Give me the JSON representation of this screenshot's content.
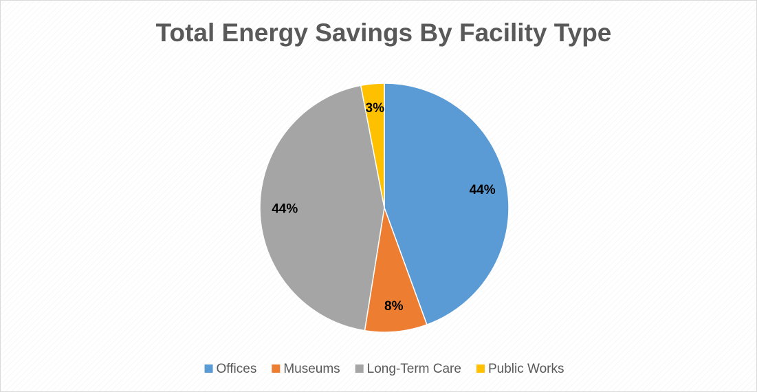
{
  "chart_data": {
    "type": "pie",
    "title": "Total Energy Savings By Facility Type",
    "categories": [
      "Offices",
      "Museums",
      "Long-Term Care",
      "Public Works"
    ],
    "values": [
      44,
      8,
      44,
      3
    ],
    "value_labels": [
      "44%",
      "8%",
      "44%",
      "3%"
    ],
    "colors": [
      "#5b9bd5",
      "#ed7d31",
      "#a5a5a5",
      "#ffc000"
    ],
    "legend": "bottom"
  }
}
